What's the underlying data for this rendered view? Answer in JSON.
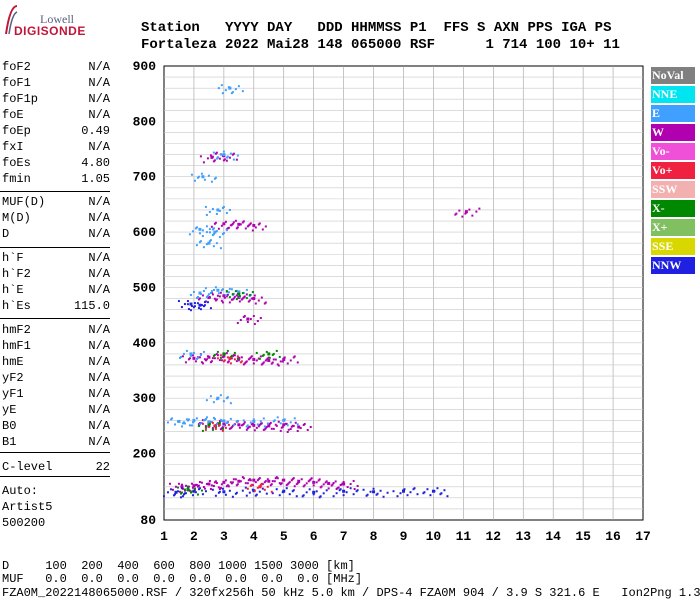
{
  "logo": {
    "line1": "Lowell",
    "line2": "DIGISONDE"
  },
  "header": {
    "line1": "Station   YYYY DAY   DDD HHMMSS P1  FFS S AXN PPS IGA PS",
    "line2": "Fortaleza 2022 Mai28 148 065000 RSF      1 714 100 10+ 11"
  },
  "params": {
    "group1": [
      {
        "name": "foF2",
        "value": "N/A"
      },
      {
        "name": "foF1",
        "value": "N/A"
      },
      {
        "name": "foF1p",
        "value": "N/A"
      },
      {
        "name": "foE",
        "value": "N/A"
      },
      {
        "name": "foEp",
        "value": "0.49"
      },
      {
        "name": "fxI",
        "value": "N/A"
      },
      {
        "name": "foEs",
        "value": "4.80"
      },
      {
        "name": "fmin",
        "value": "1.05"
      }
    ],
    "group2": [
      {
        "name": "MUF(D)",
        "value": "N/A"
      },
      {
        "name": "M(D)",
        "value": "N/A"
      },
      {
        "name": "D",
        "value": "N/A"
      }
    ],
    "group3": [
      {
        "name": "h`F",
        "value": "N/A"
      },
      {
        "name": "h`F2",
        "value": "N/A"
      },
      {
        "name": "h`E",
        "value": "N/A"
      },
      {
        "name": "h`Es",
        "value": "115.0"
      }
    ],
    "group4": [
      {
        "name": "hmF2",
        "value": "N/A"
      },
      {
        "name": "hmF1",
        "value": "N/A"
      },
      {
        "name": "hmE",
        "value": "N/A"
      },
      {
        "name": "yF2",
        "value": "N/A"
      },
      {
        "name": "yF1",
        "value": "N/A"
      },
      {
        "name": "yE",
        "value": "N/A"
      },
      {
        "name": "B0",
        "value": "N/A"
      },
      {
        "name": "B1",
        "value": "N/A"
      }
    ],
    "clevel": {
      "name": "C-level",
      "value": "22"
    }
  },
  "autoscale": {
    "line1": "Auto:",
    "line2": "Artist5",
    "line3": "500200"
  },
  "legend": [
    {
      "label": "NoVal",
      "color": "#808080"
    },
    {
      "label": "NNE",
      "color": "#00e5f0"
    },
    {
      "label": "E",
      "color": "#3fa0ff"
    },
    {
      "label": "W",
      "color": "#b000b0"
    },
    {
      "label": "Vo-",
      "color": "#f050d8"
    },
    {
      "label": "Vo+",
      "color": "#f02040"
    },
    {
      "label": "SSW",
      "color": "#f2b0b0"
    },
    {
      "label": "X-",
      "color": "#008800"
    },
    {
      "label": "X+",
      "color": "#80c060"
    },
    {
      "label": "SSE",
      "color": "#d8d800"
    },
    {
      "label": "NNW",
      "color": "#2020e0"
    }
  ],
  "footer": {
    "d_row": "D     100  200  400  600  800 1000 1500 3000 [km]",
    "muf_row": "MUF   0.0  0.0  0.0  0.0  0.0  0.0  0.0  0.0 [MHz]",
    "info": "FZA0M_2022148065000.RSF / 320fx256h 50 kHz 5.0 km / DPS-4 FZA0M 904 / 3.9 S 321.6 E   Ion2Png 1.3.20"
  },
  "chart_data": {
    "type": "scatter",
    "title": "",
    "xlabel": "",
    "ylabel": "",
    "xlim": [
      1,
      17
    ],
    "ylim": [
      80,
      900
    ],
    "x_ticks": [
      "1",
      "2",
      "3",
      "4",
      "5",
      "6",
      "7",
      "8",
      "9",
      "10",
      "11",
      "12",
      "13",
      "14",
      "15",
      "16",
      "17"
    ],
    "y_ticks": [
      "80",
      "200",
      "300",
      "400",
      "500",
      "600",
      "700",
      "800",
      "900"
    ],
    "grid": true,
    "legend_placement": "right",
    "series": [
      {
        "name": "Vo- / W traces",
        "color": "#b000b0",
        "points": [
          [
            1.6,
            140
          ],
          [
            2.0,
            142
          ],
          [
            2.5,
            145
          ],
          [
            3.0,
            148
          ],
          [
            3.5,
            150
          ],
          [
            4.0,
            152
          ],
          [
            4.5,
            150
          ],
          [
            5.0,
            152
          ],
          [
            5.5,
            150
          ],
          [
            6.0,
            148
          ],
          [
            6.5,
            146
          ],
          [
            7.0,
            145
          ],
          [
            2.5,
            255
          ],
          [
            3.0,
            253
          ],
          [
            3.5,
            252
          ],
          [
            4.0,
            251
          ],
          [
            4.5,
            250
          ],
          [
            5.0,
            252
          ],
          [
            5.5,
            248
          ],
          [
            2.0,
            372
          ],
          [
            2.5,
            374
          ],
          [
            3.0,
            376
          ],
          [
            3.5,
            372
          ],
          [
            4.0,
            370
          ],
          [
            4.5,
            368
          ],
          [
            5.0,
            370
          ],
          [
            2.5,
            482
          ],
          [
            3.0,
            485
          ],
          [
            3.5,
            482
          ],
          [
            4.0,
            480
          ],
          [
            3.0,
            615
          ],
          [
            3.5,
            614
          ],
          [
            4.0,
            612
          ],
          [
            2.6,
            735
          ],
          [
            3.0,
            738
          ],
          [
            11.1,
            637
          ],
          [
            3.8,
            443
          ]
        ]
      },
      {
        "name": "NNW",
        "color": "#2020e0",
        "points": [
          [
            1.4,
            130
          ],
          [
            2.0,
            132
          ],
          [
            3.0,
            131
          ],
          [
            4.0,
            133
          ],
          [
            5.0,
            132
          ],
          [
            6.0,
            130
          ],
          [
            7.0,
            132
          ],
          [
            8.0,
            131
          ],
          [
            9.0,
            132
          ],
          [
            10.0,
            132
          ],
          [
            1.9,
            470
          ],
          [
            2.2,
            468
          ]
        ]
      },
      {
        "name": "E / NNE",
        "color": "#3fa0ff",
        "points": [
          [
            1.5,
            258
          ],
          [
            2.0,
            260
          ],
          [
            2.5,
            257
          ],
          [
            3.0,
            259
          ],
          [
            4.0,
            258
          ],
          [
            5.0,
            260
          ],
          [
            2.2,
            490
          ],
          [
            2.8,
            495
          ],
          [
            3.5,
            492
          ],
          [
            2.5,
            580
          ],
          [
            2.7,
            600
          ],
          [
            2.8,
            640
          ],
          [
            2.3,
            700
          ],
          [
            3.2,
            860
          ],
          [
            2.8,
            300
          ],
          [
            1.9,
            380
          ],
          [
            2.2,
            605
          ],
          [
            3.0,
            740
          ]
        ]
      },
      {
        "name": "X-",
        "color": "#008800",
        "points": [
          [
            1.8,
            135
          ],
          [
            2.5,
            250
          ],
          [
            3.0,
            380
          ],
          [
            3.5,
            488
          ],
          [
            4.5,
            380
          ]
        ]
      },
      {
        "name": "Vo+",
        "color": "#f02040",
        "points": [
          [
            2.7,
            250
          ],
          [
            3.2,
            372
          ],
          [
            4.2,
            140
          ]
        ]
      }
    ]
  }
}
